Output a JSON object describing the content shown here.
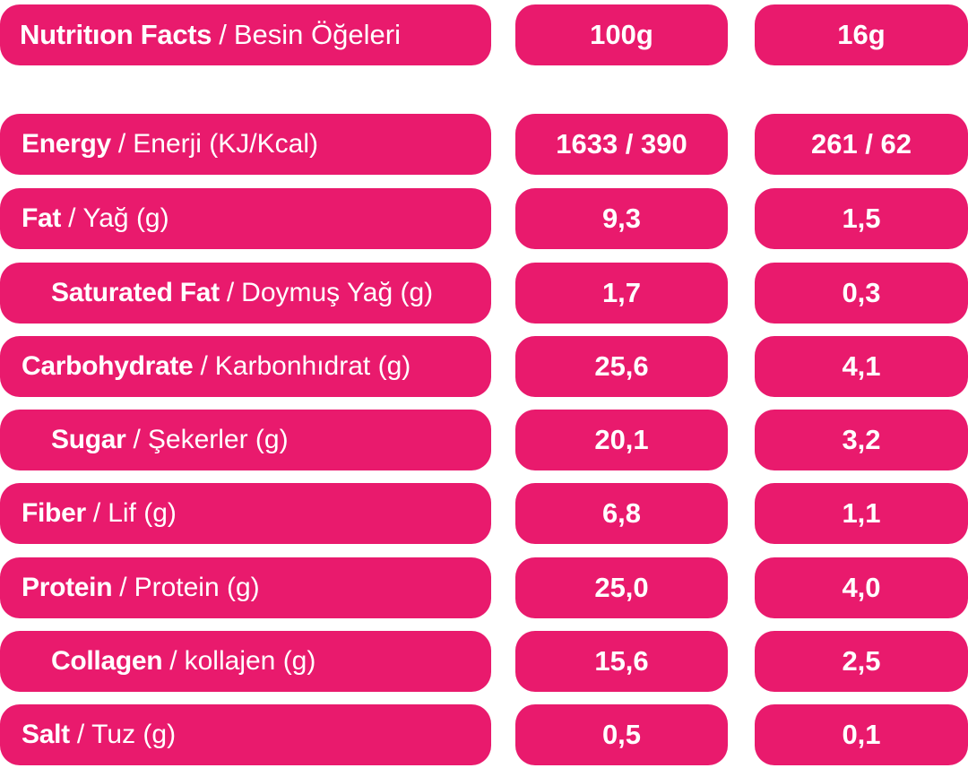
{
  "header": {
    "label_en": "Nutritıon Facts",
    "separator": "/",
    "label_tr": "Besin Öğeleri",
    "col_100g": "100g",
    "col_portion": "16g"
  },
  "rows": [
    {
      "en": "Energy",
      "tr": "Enerji (KJ/Kcal)",
      "v100": "1633 / 390",
      "vportion": "261 / 62"
    },
    {
      "en": "Fat",
      "tr": "Yağ (g)",
      "v100": "9,3",
      "vportion": "1,5"
    },
    {
      "en": "Saturated Fat",
      "tr": "Doymuş Yağ (g)",
      "v100": "1,7",
      "vportion": "0,3"
    },
    {
      "en": "Carbohydrate",
      "tr": "Karbonhıdrat (g)",
      "v100": "25,6",
      "vportion": "4,1"
    },
    {
      "en": "Sugar",
      "tr": "Şekerler (g)",
      "v100": "20,1",
      "vportion": "3,2"
    },
    {
      "en": "Fiber",
      "tr": "Lif (g)",
      "v100": "6,8",
      "vportion": "1,1"
    },
    {
      "en": "Protein",
      "tr": "Protein (g)",
      "v100": "25,0",
      "vportion": "4,0"
    },
    {
      "en": "Collagen",
      "tr": "kollajen (g)",
      "v100": "15,6",
      "vportion": "2,5"
    },
    {
      "en": "Salt",
      "tr": "Tuz (g)",
      "v100": "0,5",
      "vportion": "0,1"
    }
  ],
  "colors": {
    "pill": "#e91a6d",
    "text": "#ffffff"
  }
}
